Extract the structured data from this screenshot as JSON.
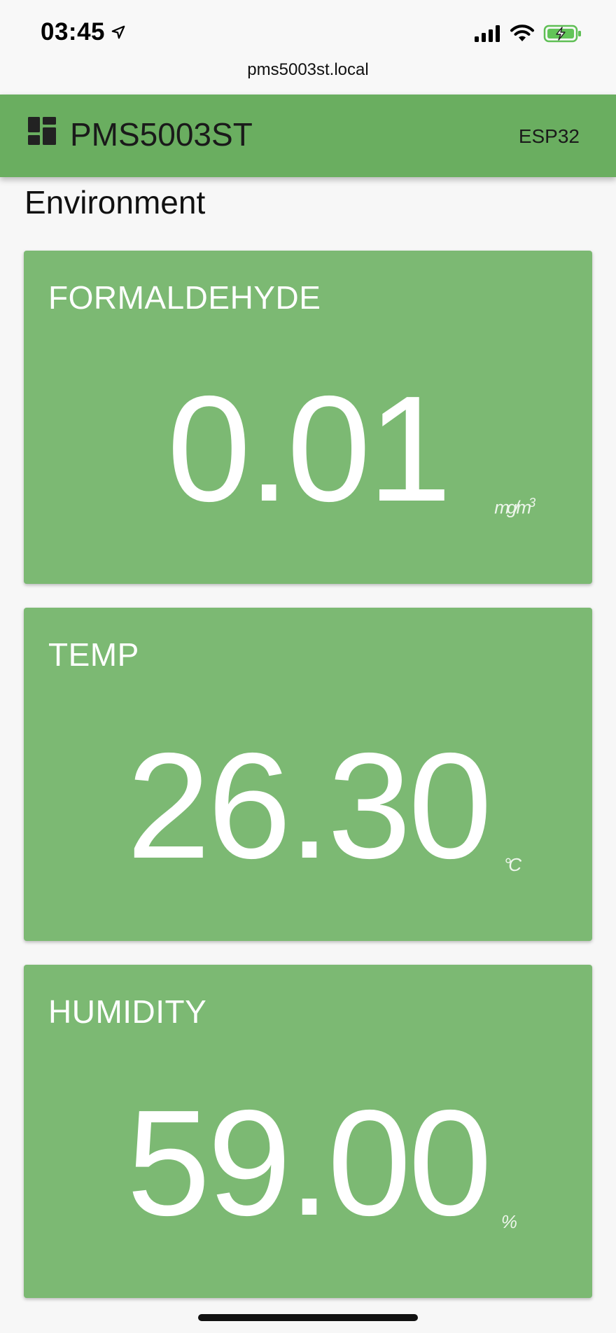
{
  "status_bar": {
    "time": "03:45",
    "icons": [
      "location-arrow-icon",
      "signal-icon",
      "wifi-icon",
      "battery-charging-icon"
    ]
  },
  "browser": {
    "url": "pms5003st.local"
  },
  "app_bar": {
    "title": "PMS5003ST",
    "device": "ESP32",
    "logo_icon": "dashboard-icon",
    "color": "#6aae60"
  },
  "section": {
    "title": "Environment"
  },
  "cards": [
    {
      "label": "FORMALDEHYDE",
      "value": "0.01",
      "unit": "mg/m",
      "unit_sup": "3"
    },
    {
      "label": "TEMP",
      "value": "26.30",
      "unit": "°C"
    },
    {
      "label": "HUMIDITY",
      "value": "59.00",
      "unit": "%"
    }
  ],
  "colors": {
    "card": "#7cb973",
    "text_on_card": "#ffffff"
  }
}
